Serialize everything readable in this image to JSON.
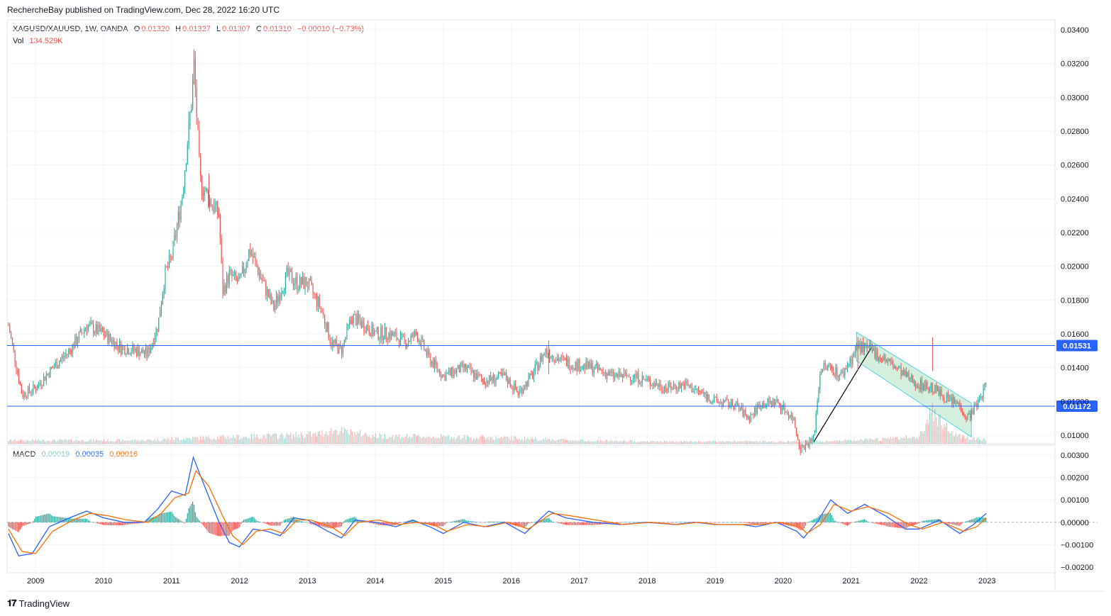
{
  "header": {
    "publisher_line": "RechercheBay published on TradingView.com, Dec 28, 2022 16:20 UTC"
  },
  "legend": {
    "symbol": "XAGUSD/XAUUSD, 1W, OANDA",
    "open_label": "O",
    "open": "0.01320",
    "high_label": "H",
    "high": "0.01327",
    "low_label": "L",
    "low": "0.01307",
    "close_label": "C",
    "close": "0.01310",
    "change": "−0.00010 (−0.73%)",
    "vol_label": "Vol",
    "vol": "134.529K",
    "macd_label": "MACD",
    "macd_hist": "0.00019",
    "macd_line": "0.00035",
    "macd_signal": "0.00016"
  },
  "footer": {
    "brand": "TradingView"
  },
  "colors": {
    "up": "#26a69a",
    "down": "#ef5350",
    "macd": "#2962ff",
    "signal": "#ff6d00",
    "hline": "#2962ff",
    "channel": "#4dd0e1",
    "channel_fill": "#b9e4c9"
  },
  "chart_data": [
    {
      "type": "candlestick",
      "xlabel": "",
      "ylabel": "",
      "x_ticks": [
        "2009",
        "2010",
        "2011",
        "2012",
        "2013",
        "2014",
        "2015",
        "2016",
        "2017",
        "2018",
        "2019",
        "2020",
        "2021",
        "2022",
        "2023"
      ],
      "y_ticks": [
        "0.03400",
        "0.03200",
        "0.03000",
        "0.02800",
        "0.02600",
        "0.02400",
        "0.02200",
        "0.02000",
        "0.01800",
        "0.01600",
        "0.01400",
        "0.01200",
        "0.01000"
      ],
      "ylim": [
        0.0096,
        0.0342
      ],
      "xlim": [
        2008.58,
        2024.0
      ],
      "price_tags": [
        "0.01531",
        "0.01172"
      ],
      "approx_close_path": [
        [
          2008.6,
          0.0165
        ],
        [
          2008.8,
          0.0124
        ],
        [
          2009.0,
          0.0128
        ],
        [
          2009.25,
          0.014
        ],
        [
          2009.5,
          0.015
        ],
        [
          2009.75,
          0.0165
        ],
        [
          2010.0,
          0.016
        ],
        [
          2010.25,
          0.0152
        ],
        [
          2010.5,
          0.015
        ],
        [
          2010.65,
          0.0148
        ],
        [
          2010.8,
          0.0165
        ],
        [
          2010.9,
          0.0195
        ],
        [
          2011.0,
          0.0205
        ],
        [
          2011.15,
          0.024
        ],
        [
          2011.3,
          0.03
        ],
        [
          2011.33,
          0.032
        ],
        [
          2011.42,
          0.025
        ],
        [
          2011.55,
          0.024
        ],
        [
          2011.7,
          0.023
        ],
        [
          2011.75,
          0.0185
        ],
        [
          2011.85,
          0.0195
        ],
        [
          2012.0,
          0.019
        ],
        [
          2012.15,
          0.021
        ],
        [
          2012.3,
          0.0195
        ],
        [
          2012.5,
          0.0175
        ],
        [
          2012.7,
          0.0195
        ],
        [
          2012.85,
          0.019
        ],
        [
          2013.0,
          0.019
        ],
        [
          2013.2,
          0.0175
        ],
        [
          2013.35,
          0.0155
        ],
        [
          2013.5,
          0.015
        ],
        [
          2013.65,
          0.017
        ],
        [
          2013.85,
          0.0165
        ],
        [
          2014.0,
          0.016
        ],
        [
          2014.2,
          0.016
        ],
        [
          2014.45,
          0.0155
        ],
        [
          2014.6,
          0.016
        ],
        [
          2014.8,
          0.0145
        ],
        [
          2015.0,
          0.0135
        ],
        [
          2015.3,
          0.014
        ],
        [
          2015.6,
          0.0132
        ],
        [
          2015.9,
          0.0135
        ],
        [
          2016.1,
          0.0125
        ],
        [
          2016.3,
          0.0135
        ],
        [
          2016.5,
          0.015
        ],
        [
          2016.7,
          0.0145
        ],
        [
          2016.9,
          0.0142
        ],
        [
          2017.2,
          0.014
        ],
        [
          2017.5,
          0.0135
        ],
        [
          2017.8,
          0.0135
        ],
        [
          2018.0,
          0.0132
        ],
        [
          2018.3,
          0.0128
        ],
        [
          2018.55,
          0.013
        ],
        [
          2018.8,
          0.0125
        ],
        [
          2019.0,
          0.012
        ],
        [
          2019.3,
          0.0118
        ],
        [
          2019.5,
          0.011
        ],
        [
          2019.65,
          0.0118
        ],
        [
          2019.9,
          0.012
        ],
        [
          2020.15,
          0.011
        ],
        [
          2020.25,
          0.0092
        ],
        [
          2020.45,
          0.0098
        ],
        [
          2020.55,
          0.014
        ],
        [
          2020.7,
          0.014
        ],
        [
          2020.85,
          0.0135
        ],
        [
          2021.0,
          0.0145
        ],
        [
          2021.1,
          0.0153
        ],
        [
          2021.3,
          0.015
        ],
        [
          2021.5,
          0.0145
        ],
        [
          2021.8,
          0.0135
        ],
        [
          2022.0,
          0.013
        ],
        [
          2022.2,
          0.0128
        ],
        [
          2022.4,
          0.0122
        ],
        [
          2022.6,
          0.0118
        ],
        [
          2022.7,
          0.011
        ],
        [
          2022.8,
          0.0115
        ],
        [
          2022.9,
          0.0122
        ],
        [
          2022.99,
          0.0131
        ]
      ]
    },
    {
      "type": "bar",
      "series": [
        {
          "values_note": ""
        }
      ],
      "approx_volume": [
        [
          2008.6,
          3
        ],
        [
          2009.5,
          3
        ],
        [
          2010.5,
          3
        ],
        [
          2011.3,
          5
        ],
        [
          2012.0,
          6
        ],
        [
          2013.1,
          8
        ],
        [
          2013.4,
          12
        ],
        [
          2013.6,
          10
        ],
        [
          2014.0,
          7
        ],
        [
          2015.0,
          6
        ],
        [
          2016.0,
          5
        ],
        [
          2017.0,
          3
        ],
        [
          2018.0,
          2
        ],
        [
          2019.0,
          2
        ],
        [
          2020.2,
          2
        ],
        [
          2021.1,
          3
        ],
        [
          2022.0,
          6
        ],
        [
          2022.2,
          30
        ],
        [
          2022.5,
          8
        ],
        [
          2022.99,
          3
        ]
      ]
    },
    {
      "type": "line",
      "y_ticks": [
        "0.00300",
        "0.00200",
        "0.00100",
        "0.00000",
        "−0.00100",
        "−0.00200"
      ],
      "ylim": [
        -0.0022,
        0.0031
      ],
      "series": [
        {
          "name": "0.00035",
          "points": [
            [
              2008.6,
              -0.0005
            ],
            [
              2008.75,
              -0.0015
            ],
            [
              2008.95,
              -0.0014
            ],
            [
              2009.2,
              -0.0002
            ],
            [
              2009.5,
              0.0002
            ],
            [
              2009.75,
              0.0005
            ],
            [
              2010.0,
              0.0002
            ],
            [
              2010.3,
              0.0
            ],
            [
              2010.6,
              0.0
            ],
            [
              2010.8,
              0.0006
            ],
            [
              2011.0,
              0.0014
            ],
            [
              2011.2,
              0.0012
            ],
            [
              2011.32,
              0.0029
            ],
            [
              2011.5,
              0.0015
            ],
            [
              2011.7,
              0.0
            ],
            [
              2011.85,
              -0.0009
            ],
            [
              2012.0,
              -0.0011
            ],
            [
              2012.2,
              -0.0003
            ],
            [
              2012.4,
              -0.0004
            ],
            [
              2012.6,
              -0.0006
            ],
            [
              2012.8,
              0.0002
            ],
            [
              2013.0,
              0.0001
            ],
            [
              2013.3,
              -0.0004
            ],
            [
              2013.5,
              -0.0007
            ],
            [
              2013.7,
              0.0001
            ],
            [
              2014.0,
              0.0
            ],
            [
              2014.3,
              -0.0002
            ],
            [
              2014.55,
              0.0001
            ],
            [
              2014.8,
              -0.0002
            ],
            [
              2015.0,
              -0.0005
            ],
            [
              2015.3,
              0.0
            ],
            [
              2015.6,
              -0.0002
            ],
            [
              2015.9,
              0.0
            ],
            [
              2016.2,
              -0.0005
            ],
            [
              2016.55,
              0.0005
            ],
            [
              2016.8,
              0.0002
            ],
            [
              2017.2,
              0.0
            ],
            [
              2017.6,
              -0.0001
            ],
            [
              2018.0,
              0.0
            ],
            [
              2018.4,
              -0.0001
            ],
            [
              2018.7,
              0.0
            ],
            [
              2019.0,
              -0.0001
            ],
            [
              2019.4,
              -0.0001
            ],
            [
              2019.6,
              -0.0002
            ],
            [
              2019.9,
              0.0
            ],
            [
              2020.2,
              -0.0004
            ],
            [
              2020.3,
              -0.0007
            ],
            [
              2020.5,
              0.0
            ],
            [
              2020.7,
              0.001
            ],
            [
              2020.95,
              0.0004
            ],
            [
              2021.2,
              0.0008
            ],
            [
              2021.5,
              0.0003
            ],
            [
              2021.8,
              -0.0003
            ],
            [
              2022.0,
              -0.0003
            ],
            [
              2022.3,
              0.0001
            ],
            [
              2022.6,
              -0.0005
            ],
            [
              2022.8,
              -0.0001
            ],
            [
              2022.99,
              0.0004
            ]
          ]
        },
        {
          "name": "0.00016",
          "points": [
            [
              2008.6,
              -0.0003
            ],
            [
              2008.8,
              -0.0013
            ],
            [
              2009.0,
              -0.0014
            ],
            [
              2009.25,
              -0.0004
            ],
            [
              2009.55,
              0.0001
            ],
            [
              2009.8,
              0.0004
            ],
            [
              2010.05,
              0.0003
            ],
            [
              2010.35,
              0.0001
            ],
            [
              2010.65,
              0.0
            ],
            [
              2010.85,
              0.0004
            ],
            [
              2011.05,
              0.0011
            ],
            [
              2011.25,
              0.0013
            ],
            [
              2011.36,
              0.0023
            ],
            [
              2011.55,
              0.0016
            ],
            [
              2011.75,
              0.0003
            ],
            [
              2011.9,
              -0.0006
            ],
            [
              2012.05,
              -0.001
            ],
            [
              2012.25,
              -0.0004
            ],
            [
              2012.45,
              -0.0003
            ],
            [
              2012.65,
              -0.0005
            ],
            [
              2012.85,
              0.0001
            ],
            [
              2013.05,
              0.0001
            ],
            [
              2013.35,
              -0.0002
            ],
            [
              2013.55,
              -0.0006
            ],
            [
              2013.75,
              0.0
            ],
            [
              2014.05,
              0.0001
            ],
            [
              2014.35,
              -0.0001
            ],
            [
              2014.6,
              0.0
            ],
            [
              2014.85,
              -0.0001
            ],
            [
              2015.05,
              -0.0004
            ],
            [
              2015.35,
              -0.0001
            ],
            [
              2015.65,
              -0.0002
            ],
            [
              2015.95,
              0.0
            ],
            [
              2016.25,
              -0.0003
            ],
            [
              2016.6,
              0.0004
            ],
            [
              2016.85,
              0.0003
            ],
            [
              2017.25,
              0.0001
            ],
            [
              2017.65,
              -0.0001
            ],
            [
              2018.05,
              0.0
            ],
            [
              2018.45,
              -0.0001
            ],
            [
              2018.75,
              0.0
            ],
            [
              2019.05,
              -0.0001
            ],
            [
              2019.45,
              -0.0001
            ],
            [
              2019.65,
              -0.0001
            ],
            [
              2019.95,
              0.0
            ],
            [
              2020.25,
              -0.0002
            ],
            [
              2020.35,
              -0.0005
            ],
            [
              2020.55,
              -0.0001
            ],
            [
              2020.75,
              0.0008
            ],
            [
              2021.0,
              0.0005
            ],
            [
              2021.25,
              0.0007
            ],
            [
              2021.55,
              0.0004
            ],
            [
              2021.85,
              -0.0001
            ],
            [
              2022.05,
              -0.0003
            ],
            [
              2022.35,
              0.0
            ],
            [
              2022.65,
              -0.0004
            ],
            [
              2022.85,
              -0.0002
            ],
            [
              2022.99,
              0.0002
            ]
          ]
        }
      ]
    }
  ]
}
